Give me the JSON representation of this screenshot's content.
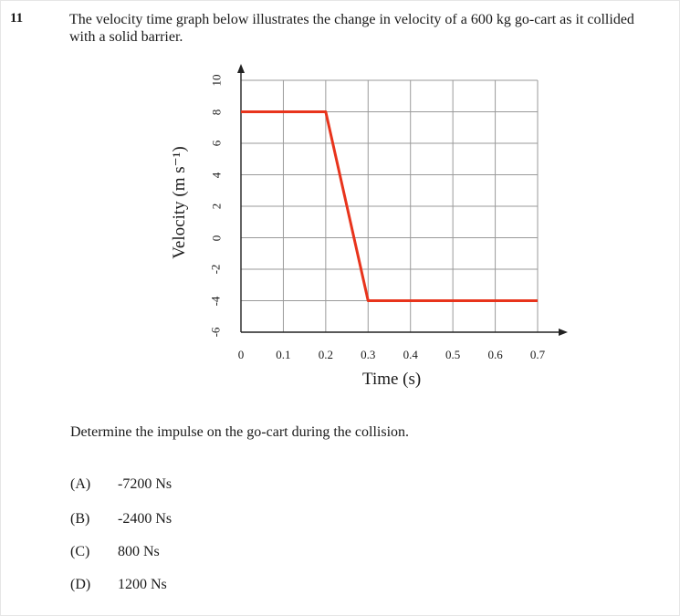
{
  "question": {
    "number": "11",
    "text": "The velocity time graph below illustrates the change in velocity of a 600 kg go-cart as it collided with a solid barrier.",
    "prompt": "Determine the impulse on the go-cart during the collision.",
    "options": [
      {
        "letter": "(A)",
        "text": "-7200 Ns"
      },
      {
        "letter": "(B)",
        "text": "-2400 Ns"
      },
      {
        "letter": "(C)",
        "text": "800 Ns"
      },
      {
        "letter": "(D)",
        "text": "1200 Ns"
      }
    ]
  },
  "chart_data": {
    "type": "line",
    "xlabel": "Time (s)",
    "ylabel": "Velocity (m s⁻¹)",
    "xlim": [
      0,
      0.7
    ],
    "ylim": [
      -6,
      10
    ],
    "x_ticks": [
      "0",
      "0.1",
      "0.2",
      "0.3",
      "0.4",
      "0.5",
      "0.6",
      "0.7"
    ],
    "y_ticks": [
      "10",
      "8",
      "6",
      "4",
      "2",
      "0",
      "-2",
      "-4",
      "-6"
    ],
    "grid": true,
    "series": [
      {
        "color": "#e8341c",
        "x": [
          0,
          0.2,
          0.3,
          0.7
        ],
        "y": [
          8,
          8,
          -4,
          -4
        ]
      }
    ]
  }
}
